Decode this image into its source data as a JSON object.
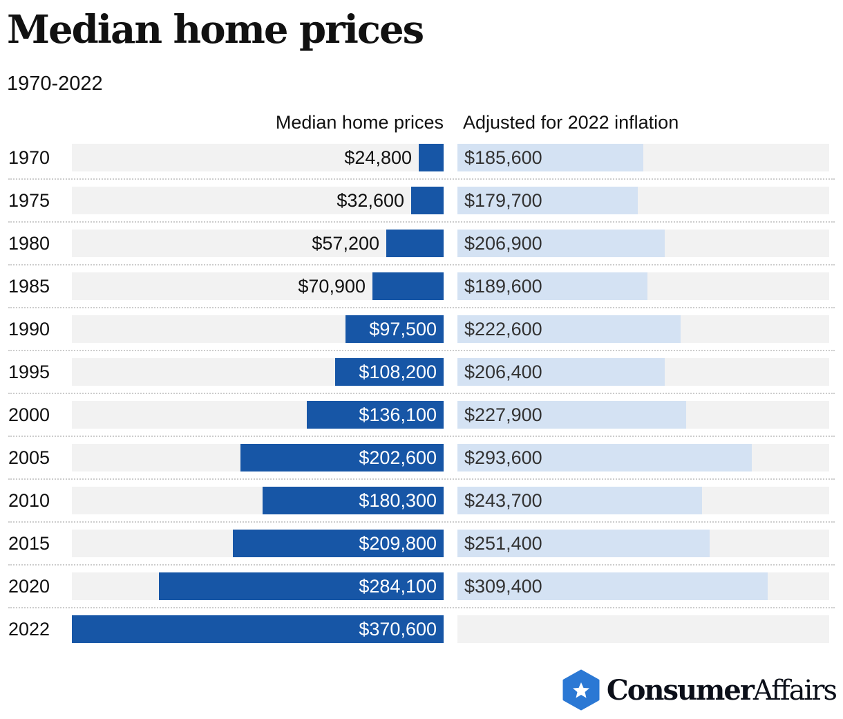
{
  "title": "Median home prices",
  "subtitle": "1970-2022",
  "logo": {
    "part1": "Consumer",
    "part2": "Affairs"
  },
  "chart_data": {
    "type": "bar",
    "orientation": "horizontal",
    "title": "Median home prices",
    "subtitle": "1970-2022",
    "categories": [
      "1970",
      "1975",
      "1980",
      "1985",
      "1990",
      "1995",
      "2000",
      "2005",
      "2010",
      "2015",
      "2020",
      "2022"
    ],
    "series": [
      {
        "name": "Median home prices",
        "color": "#1756a6",
        "values": [
          24800,
          32600,
          57200,
          70900,
          97500,
          108200,
          136100,
          202600,
          180300,
          209800,
          284100,
          370600
        ],
        "labels": [
          "$24,800",
          "$32,600",
          "$57,200",
          "$70,900",
          "$97,500",
          "$108,200",
          "$136,100",
          "$202,600",
          "$180,300",
          "$209,800",
          "$284,100",
          "$370,600"
        ]
      },
      {
        "name": "Adjusted for 2022 inflation",
        "color": "#d4e2f3",
        "values": [
          185600,
          179700,
          206900,
          189600,
          222600,
          206400,
          227900,
          293600,
          243700,
          251400,
          309400,
          null
        ],
        "labels": [
          "$185,600",
          "$179,700",
          "$206,900",
          "$189,600",
          "$222,600",
          "$206,400",
          "$227,900",
          "$293,600",
          "$243,700",
          "$251,400",
          "$309,400",
          ""
        ]
      }
    ],
    "xlim": [
      0,
      370600
    ],
    "grid": false,
    "legend": "column-headers"
  }
}
